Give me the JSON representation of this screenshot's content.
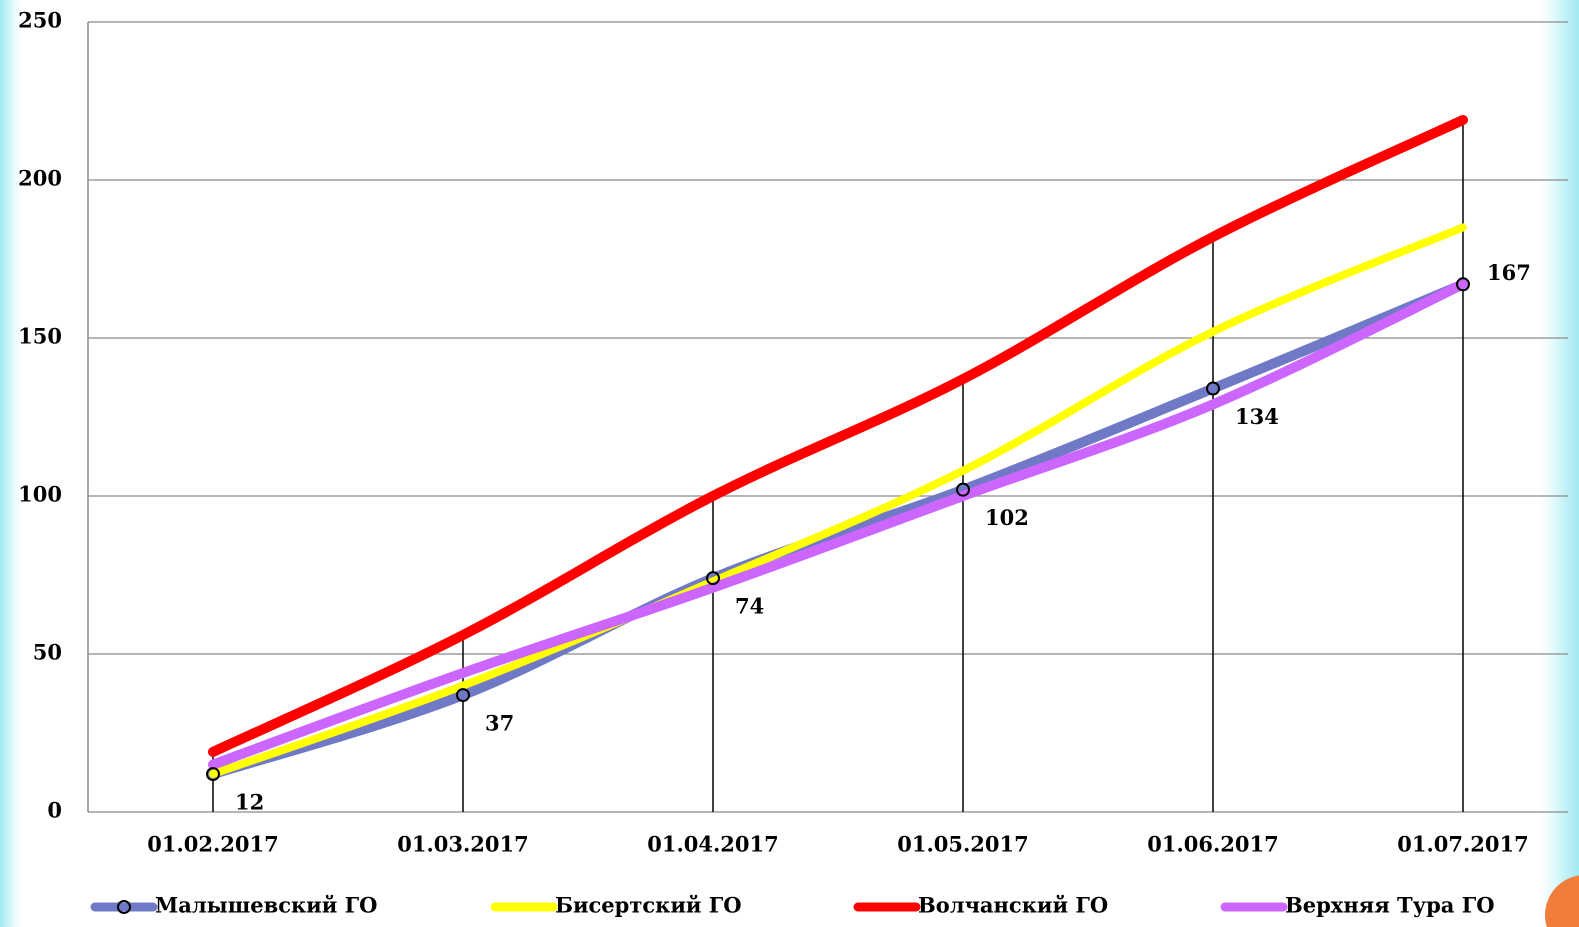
{
  "chart_data": {
    "type": "line",
    "categories": [
      "01.02.2017",
      "01.03.2017",
      "01.04.2017",
      "01.05.2017",
      "01.06.2017",
      "01.07.2017"
    ],
    "series": [
      {
        "name": "Малышевский ГО",
        "color": "#6f79c6",
        "values": [
          12,
          37,
          74,
          102,
          134,
          167
        ],
        "markers": true,
        "data_labels": true
      },
      {
        "name": "Бисертский ГО",
        "color": "#ffff00",
        "values": [
          12,
          40,
          73,
          108,
          152,
          185
        ]
      },
      {
        "name": "Волчанский ГО",
        "color": "#ff0000",
        "values": [
          19,
          56,
          100,
          137,
          182,
          219
        ]
      },
      {
        "name": "Верхняя Тура ГО",
        "color": "#cc66ff",
        "values": [
          15,
          44,
          71,
          100,
          129,
          167
        ]
      }
    ],
    "ylim": [
      0,
      250
    ],
    "yticks": [
      0,
      50,
      100,
      150,
      200,
      250
    ],
    "grid": true,
    "drop_lines": true,
    "legend": "bottom"
  }
}
